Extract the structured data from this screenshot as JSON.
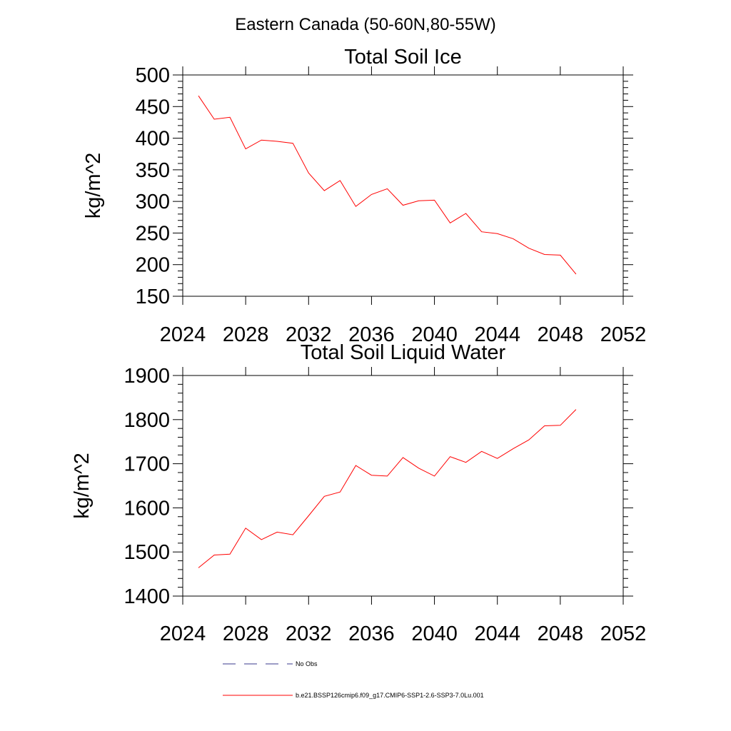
{
  "figure_title": "Eastern Canada (50-60N,80-55W)",
  "chart_data": [
    {
      "type": "line",
      "title": "Total Soil Ice",
      "xlabel": "",
      "ylabel": "kg/m^2",
      "xlim": [
        2024,
        2052
      ],
      "ylim": [
        150,
        500
      ],
      "x_ticks": [
        2024,
        2028,
        2032,
        2036,
        2040,
        2044,
        2048,
        2052
      ],
      "y_ticks": [
        150,
        200,
        250,
        300,
        350,
        400,
        450,
        500
      ],
      "color": "#ff0000",
      "series": [
        {
          "name": "b.e21.BSSP126cmip6.f09_g17.CMIP6-SSP1-2.6-SSP3-7.0Lu.001",
          "x": [
            2025,
            2026,
            2027,
            2028,
            2029,
            2030,
            2031,
            2032,
            2033,
            2034,
            2035,
            2036,
            2037,
            2038,
            2039,
            2040,
            2041,
            2042,
            2043,
            2044,
            2045,
            2046,
            2047,
            2048,
            2049
          ],
          "values": [
            467,
            430,
            433,
            383,
            397,
            395,
            392,
            345,
            317,
            333,
            292,
            311,
            320,
            294,
            301,
            302,
            266,
            281,
            252,
            249,
            241,
            226,
            216,
            215,
            185
          ]
        }
      ]
    },
    {
      "type": "line",
      "title": "Total Soil Liquid Water",
      "xlabel": "",
      "ylabel": "kg/m^2",
      "xlim": [
        2024,
        2052
      ],
      "ylim": [
        1400,
        1900
      ],
      "x_ticks": [
        2024,
        2028,
        2032,
        2036,
        2040,
        2044,
        2048,
        2052
      ],
      "y_ticks": [
        1400,
        1500,
        1600,
        1700,
        1800,
        1900
      ],
      "color": "#ff0000",
      "series": [
        {
          "name": "b.e21.BSSP126cmip6.f09_g17.CMIP6-SSP1-2.6-SSP3-7.0Lu.001",
          "x": [
            2025,
            2026,
            2027,
            2028,
            2029,
            2030,
            2031,
            2032,
            2033,
            2034,
            2035,
            2036,
            2037,
            2038,
            2039,
            2040,
            2041,
            2042,
            2043,
            2044,
            2045,
            2046,
            2047,
            2048,
            2049
          ],
          "values": [
            1464,
            1493,
            1495,
            1554,
            1528,
            1545,
            1539,
            1582,
            1626,
            1636,
            1696,
            1674,
            1672,
            1714,
            1690,
            1672,
            1716,
            1703,
            1728,
            1712,
            1734,
            1754,
            1786,
            1787,
            1823
          ]
        }
      ]
    }
  ],
  "legend": [
    {
      "label": "No Obs",
      "color": "#3a3a8c",
      "dash": "dashed"
    },
    {
      "label": "b.e21.BSSP126cmip6.f09_g17.CMIP6-SSP1-2.6-SSP3-7.0Lu.001",
      "color": "#ff0000",
      "dash": "solid"
    }
  ]
}
